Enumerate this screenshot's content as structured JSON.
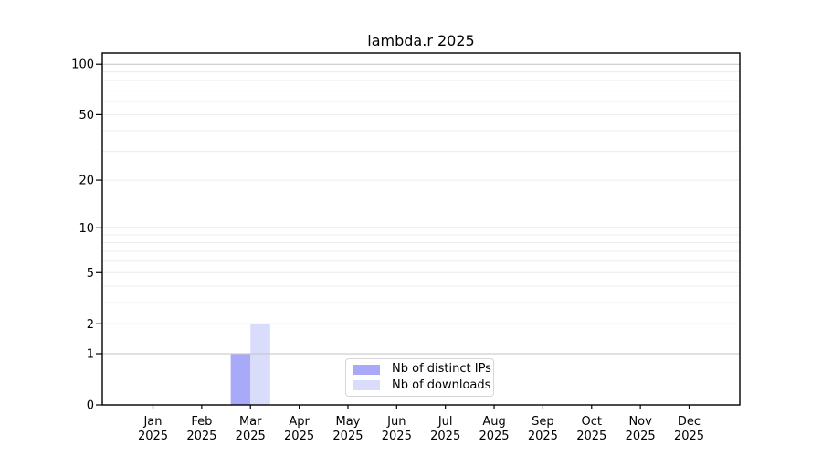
{
  "chart_data": {
    "type": "bar",
    "title": "lambda.r 2025",
    "categories": [
      "Jan",
      "Feb",
      "Mar",
      "Apr",
      "May",
      "Jun",
      "Jul",
      "Aug",
      "Sep",
      "Oct",
      "Nov",
      "Dec"
    ],
    "category_year": "2025",
    "series": [
      {
        "name": "Nb of distinct IPs",
        "color": "#a8a9f8",
        "values": [
          0,
          0,
          1,
          0,
          0,
          0,
          0,
          0,
          0,
          0,
          0,
          0
        ]
      },
      {
        "name": "Nb of downloads",
        "color": "#dadcfb",
        "values": [
          0,
          0,
          2,
          0,
          0,
          0,
          0,
          0,
          0,
          0,
          0,
          0
        ]
      }
    ],
    "y_ticks": [
      0,
      1,
      2,
      5,
      10,
      20,
      50,
      100
    ],
    "y_scale": "log10(1+x)",
    "ylim": [
      0,
      117
    ],
    "grid": {
      "major_values": [
        1,
        10,
        100
      ],
      "minor_values": [
        2,
        3,
        4,
        5,
        6,
        7,
        8,
        9,
        20,
        30,
        40,
        50,
        60,
        70,
        80,
        90
      ],
      "major_color": "#c3c3c3",
      "minor_color": "#ececec"
    },
    "axis_color": "#000000",
    "legend": {
      "position": "lower center",
      "border_color": "#d6d6d6",
      "background": "#ffffff"
    }
  }
}
